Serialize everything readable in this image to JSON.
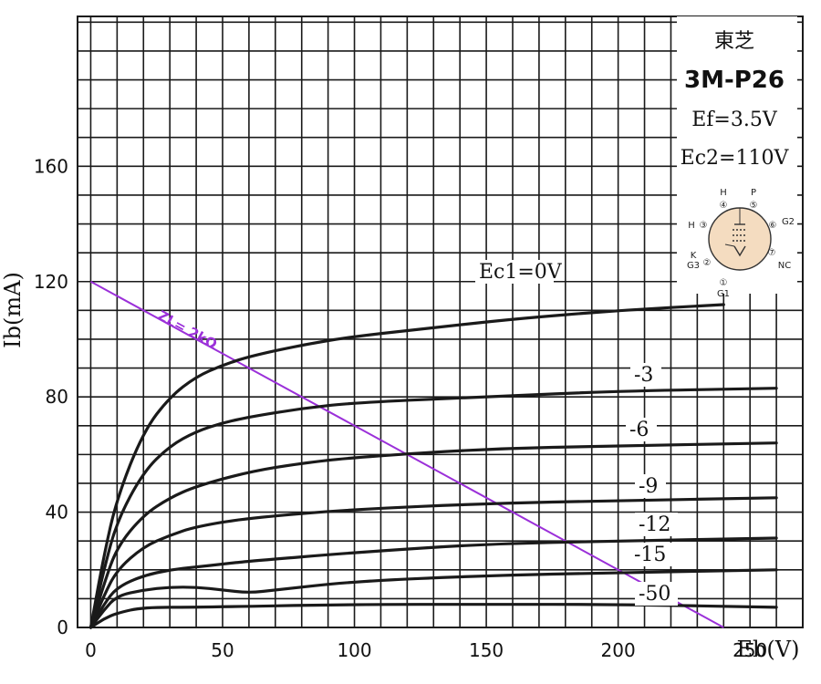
{
  "chart_data": {
    "type": "line",
    "xlabel": "Eb(V)",
    "ylabel": "Ib(mA)",
    "xlim": [
      -5,
      270
    ],
    "ylim": [
      0,
      212
    ],
    "xticks": [
      0,
      50,
      100,
      150,
      200,
      250
    ],
    "yticks": [
      0,
      40,
      80,
      120,
      160
    ],
    "grid": true,
    "series": [
      {
        "name": "Ec1=0V",
        "points": [
          [
            0,
            0
          ],
          [
            5,
            25
          ],
          [
            10,
            45
          ],
          [
            20,
            68
          ],
          [
            30,
            80
          ],
          [
            40,
            87
          ],
          [
            50,
            91
          ],
          [
            60,
            94
          ],
          [
            80,
            98
          ],
          [
            100,
            101
          ],
          [
            130,
            104
          ],
          [
            160,
            107
          ],
          [
            200,
            110
          ],
          [
            240,
            112
          ]
        ]
      },
      {
        "name": "-3",
        "points": [
          [
            0,
            0
          ],
          [
            5,
            20
          ],
          [
            10,
            37
          ],
          [
            20,
            54
          ],
          [
            30,
            63
          ],
          [
            40,
            68
          ],
          [
            50,
            71
          ],
          [
            60,
            73
          ],
          [
            80,
            76
          ],
          [
            100,
            78
          ],
          [
            150,
            80
          ],
          [
            200,
            82
          ],
          [
            260,
            83
          ]
        ]
      },
      {
        "name": "-6",
        "points": [
          [
            0,
            0
          ],
          [
            5,
            15
          ],
          [
            10,
            28
          ],
          [
            20,
            39
          ],
          [
            30,
            45
          ],
          [
            40,
            49
          ],
          [
            60,
            54
          ],
          [
            80,
            57
          ],
          [
            100,
            59
          ],
          [
            150,
            62
          ],
          [
            200,
            63
          ],
          [
            260,
            64
          ]
        ]
      },
      {
        "name": "-9",
        "points": [
          [
            0,
            0
          ],
          [
            5,
            11
          ],
          [
            10,
            20
          ],
          [
            20,
            28
          ],
          [
            30,
            32
          ],
          [
            40,
            35
          ],
          [
            60,
            38
          ],
          [
            100,
            41
          ],
          [
            150,
            43
          ],
          [
            200,
            44
          ],
          [
            260,
            45
          ]
        ]
      },
      {
        "name": "-12",
        "points": [
          [
            0,
            0
          ],
          [
            5,
            8
          ],
          [
            10,
            14
          ],
          [
            20,
            18
          ],
          [
            30,
            20
          ],
          [
            40,
            21
          ],
          [
            50,
            22
          ],
          [
            60,
            23
          ],
          [
            100,
            26
          ],
          [
            150,
            29
          ],
          [
            200,
            30
          ],
          [
            260,
            31
          ]
        ]
      },
      {
        "name": "-15",
        "points": [
          [
            0,
            0
          ],
          [
            5,
            6
          ],
          [
            10,
            11
          ],
          [
            20,
            13
          ],
          [
            30,
            14
          ],
          [
            40,
            14
          ],
          [
            50,
            13
          ],
          [
            60,
            12
          ],
          [
            70,
            13
          ],
          [
            100,
            16
          ],
          [
            150,
            18
          ],
          [
            200,
            19
          ],
          [
            260,
            20
          ]
        ]
      },
      {
        "name": "-50",
        "points": [
          [
            0,
            0
          ],
          [
            5,
            3
          ],
          [
            10,
            5
          ],
          [
            20,
            7
          ],
          [
            40,
            7
          ],
          [
            100,
            8
          ],
          [
            150,
            8
          ],
          [
            200,
            8
          ],
          [
            260,
            7
          ]
        ]
      }
    ],
    "load_line": {
      "label": "ZL= 2kΩ",
      "from": [
        0,
        120
      ],
      "to": [
        240,
        0
      ],
      "color": "#9b30d9"
    }
  },
  "info": {
    "maker": "東芝",
    "model": "3M-P26",
    "ef": "Ef=3.5V",
    "ec2": "Ec2=110V",
    "pins": [
      {
        "num": "①",
        "label": "G1"
      },
      {
        "num": "②",
        "label": "K"
      },
      {
        "num": "②",
        "label": "G3"
      },
      {
        "num": "③",
        "label": "H"
      },
      {
        "num": "④",
        "label": "H"
      },
      {
        "num": "⑤",
        "label": "P"
      },
      {
        "num": "⑥",
        "label": "G2"
      },
      {
        "num": "⑦",
        "label": "NC"
      }
    ]
  }
}
